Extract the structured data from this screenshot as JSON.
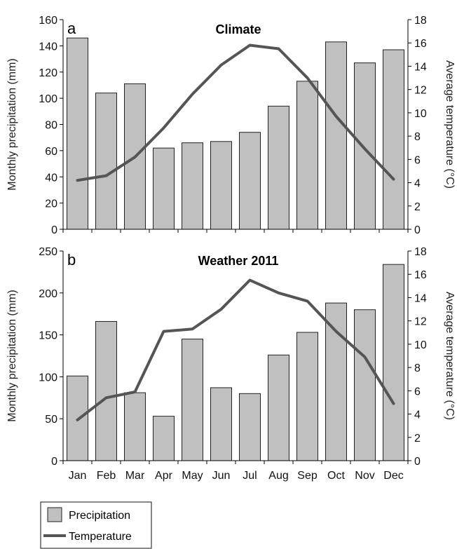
{
  "chart_data": [
    {
      "type": "bar",
      "panel_label": "a",
      "title": "Climate",
      "categories": [
        "Jan",
        "Feb",
        "Mar",
        "Apr",
        "May",
        "Jun",
        "Jul",
        "Aug",
        "Sep",
        "Oct",
        "Nov",
        "Dec"
      ],
      "ylabel": "Monthly precipitation (mm)",
      "y2label": "Average temperature (°C)",
      "ylim": [
        0,
        160
      ],
      "y2lim": [
        0,
        18
      ],
      "yticks": [
        0,
        20,
        40,
        60,
        80,
        100,
        120,
        140,
        160
      ],
      "y2ticks": [
        0,
        2,
        4,
        6,
        8,
        10,
        12,
        14,
        16,
        18
      ],
      "series": [
        {
          "name": "Precipitation",
          "type": "bar",
          "values": [
            146,
            104,
            111,
            62,
            66,
            67,
            74,
            94,
            113,
            143,
            127,
            137
          ]
        },
        {
          "name": "Temperature",
          "type": "line",
          "axis": "right",
          "values": [
            4.2,
            4.6,
            6.2,
            8.7,
            11.6,
            14.1,
            15.8,
            15.5,
            13.0,
            9.7,
            6.9,
            4.3
          ]
        }
      ]
    },
    {
      "type": "bar",
      "panel_label": "b",
      "title": "Weather 2011",
      "categories": [
        "Jan",
        "Feb",
        "Mar",
        "Apr",
        "May",
        "Jun",
        "Jul",
        "Aug",
        "Sep",
        "Oct",
        "Nov",
        "Dec"
      ],
      "ylabel": "Monthly precipitation (mm)",
      "y2label": "Average temperature (°C)",
      "ylim": [
        0,
        250
      ],
      "y2lim": [
        0,
        18
      ],
      "yticks": [
        0,
        50,
        100,
        150,
        200,
        250
      ],
      "y2ticks": [
        0,
        2,
        4,
        6,
        8,
        10,
        12,
        14,
        16,
        18
      ],
      "series": [
        {
          "name": "Precipitation",
          "type": "bar",
          "values": [
            101,
            166,
            81,
            53,
            145,
            87,
            80,
            126,
            153,
            188,
            180,
            234
          ]
        },
        {
          "name": "Temperature",
          "type": "line",
          "axis": "right",
          "values": [
            3.5,
            5.4,
            5.9,
            11.1,
            11.3,
            13.0,
            15.5,
            14.4,
            13.7,
            11.1,
            8.9,
            4.9
          ]
        }
      ]
    }
  ],
  "legend": {
    "items": [
      {
        "label": "Precipitation",
        "kind": "bar"
      },
      {
        "label": "Temperature",
        "kind": "line"
      }
    ],
    "placement": "bottom-left"
  },
  "colors": {
    "bar_fill": "#c0c0c0",
    "bar_stroke": "#222222",
    "line": "#555555"
  }
}
